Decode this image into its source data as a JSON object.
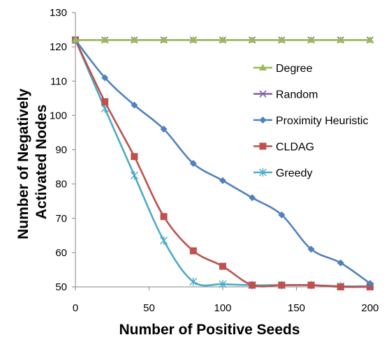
{
  "chart_data": {
    "type": "line",
    "title": "",
    "xlabel": "Number of Positive Seeds",
    "ylabel_lines": [
      "Number of Negatively",
      "Activated Nodes"
    ],
    "xlim": [
      0,
      200
    ],
    "ylim": [
      50,
      130
    ],
    "xticks": [
      0,
      50,
      100,
      150,
      200
    ],
    "yticks": [
      50,
      60,
      70,
      80,
      90,
      100,
      110,
      120,
      130
    ],
    "grid": false,
    "legend_position": "right",
    "x": [
      0,
      20,
      40,
      60,
      80,
      100,
      120,
      140,
      160,
      180,
      200
    ],
    "series": [
      {
        "name": "Degree",
        "color": "#9bbb59",
        "marker": "triangle",
        "values": [
          122,
          122,
          122,
          122,
          122,
          122,
          122,
          122,
          122,
          122,
          122
        ]
      },
      {
        "name": "Random",
        "color": "#8064a2",
        "marker": "x",
        "values": [
          122,
          122,
          122,
          122,
          122,
          122,
          122,
          122,
          122,
          122,
          122
        ]
      },
      {
        "name": "Proximity Heuristic",
        "color": "#4f81bd",
        "marker": "diamond",
        "values": [
          122,
          111,
          103,
          96,
          86,
          81,
          76,
          71,
          61,
          57,
          51
        ]
      },
      {
        "name": "CLDAG",
        "color": "#c0504d",
        "marker": "square",
        "values": [
          122,
          104,
          88,
          70.5,
          60.5,
          56,
          50.5,
          50.5,
          50.5,
          50,
          50
        ]
      },
      {
        "name": "Greedy",
        "color": "#4bacc6",
        "marker": "star",
        "values": [
          122,
          102,
          82.5,
          63.5,
          51.5,
          50.8,
          50.5,
          50.5,
          50.5,
          50.2,
          50.2
        ]
      }
    ]
  }
}
